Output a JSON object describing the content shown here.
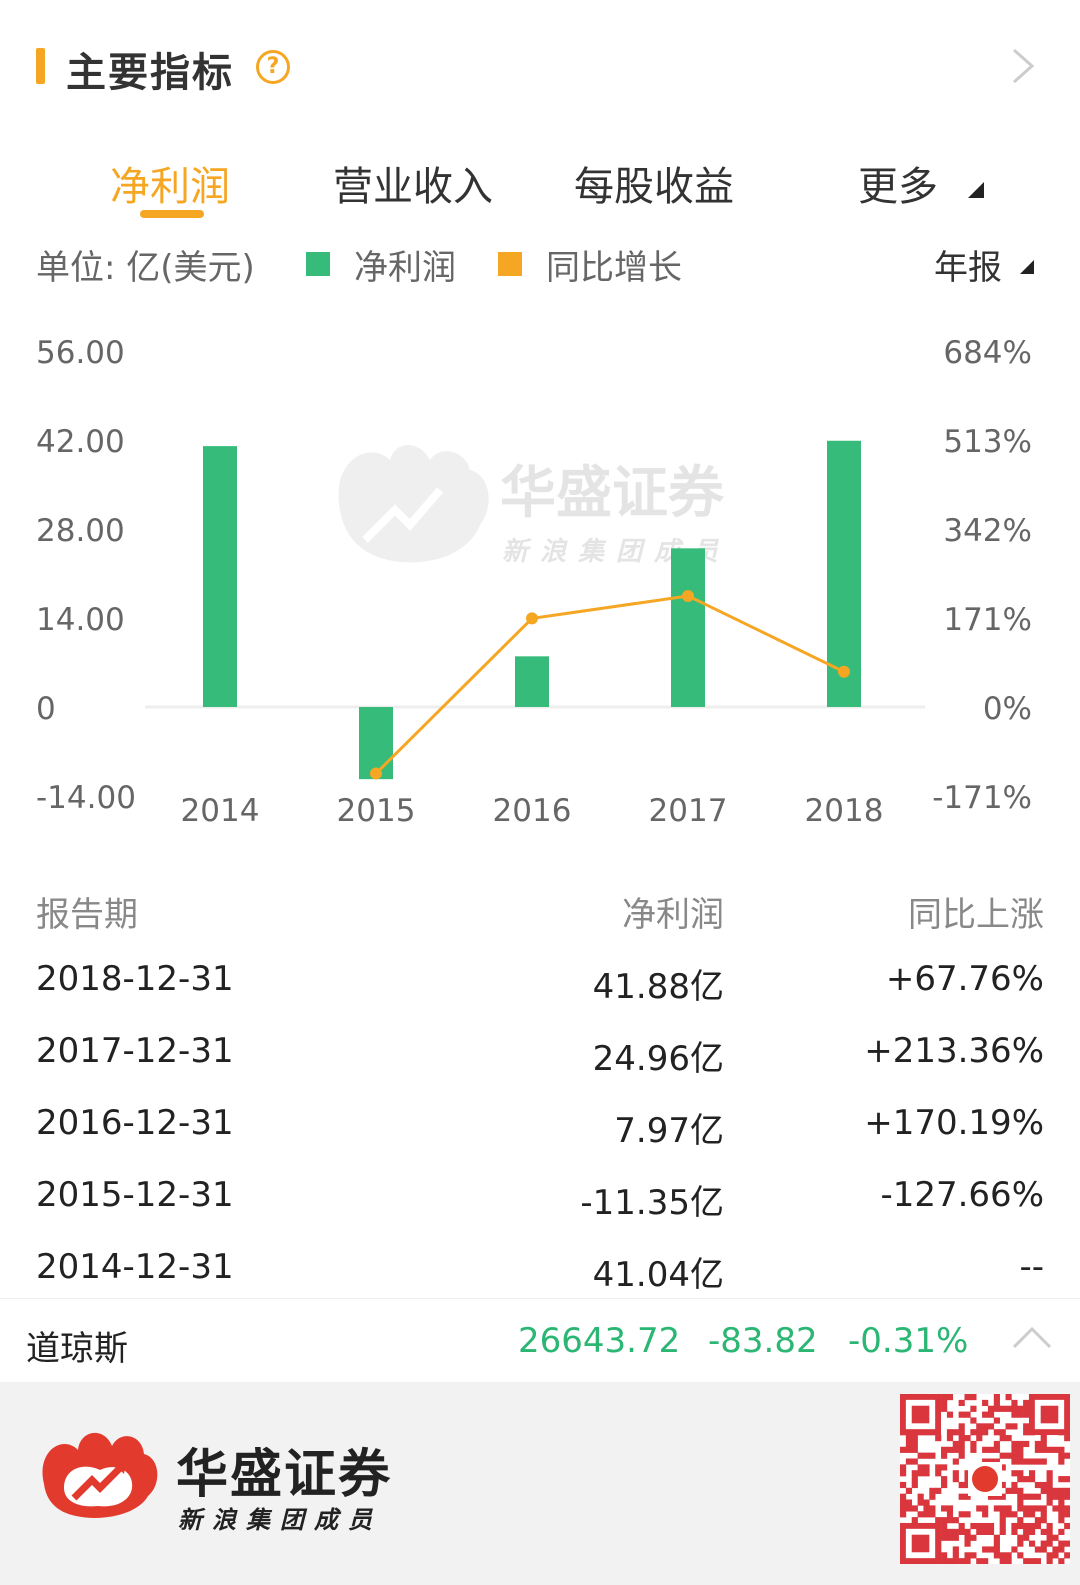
{
  "header": {
    "title": "主要指标",
    "help_glyph": "?"
  },
  "tabs": [
    {
      "label": "净利润",
      "active": true
    },
    {
      "label": "营业收入",
      "active": false
    },
    {
      "label": "每股收益",
      "active": false
    },
    {
      "label": "更多",
      "active": false
    }
  ],
  "legend": {
    "unit": "单位: 亿(美元)",
    "items": [
      {
        "label": "净利润",
        "color": "#36bb7a"
      },
      {
        "label": "同比增长",
        "color": "#f5a623"
      }
    ],
    "period": "年报"
  },
  "watermark": {
    "brand": "华盛证券",
    "sub": "新浪集团成员"
  },
  "chart_data": {
    "type": "bar",
    "categories": [
      "2014",
      "2015",
      "2016",
      "2017",
      "2018"
    ],
    "series": [
      {
        "name": "净利润",
        "type": "bar",
        "axis": "left",
        "color": "#36bb7a",
        "values": [
          41.04,
          -11.35,
          7.97,
          24.96,
          41.88
        ]
      },
      {
        "name": "同比增长",
        "type": "line",
        "axis": "right",
        "color": "#f5a623",
        "values": [
          null,
          -127.66,
          170.19,
          213.36,
          67.76
        ]
      }
    ],
    "ylim": [
      -14,
      56
    ],
    "yticks": [
      "56.00",
      "42.00",
      "28.00",
      "14.00",
      "0",
      "-14.00"
    ],
    "ylim_right": [
      -171,
      684
    ],
    "yticks_right": [
      "684%",
      "513%",
      "342%",
      "171%",
      "0%",
      "-171%"
    ],
    "zero_line": true,
    "legend_position": "top"
  },
  "table": {
    "headers": [
      "报告期",
      "净利润",
      "同比上涨"
    ],
    "rows": [
      {
        "date": "2018-12-31",
        "profit": "41.88亿",
        "change": "+67.76%"
      },
      {
        "date": "2017-12-31",
        "profit": "24.96亿",
        "change": "+213.36%"
      },
      {
        "date": "2016-12-31",
        "profit": "7.97亿",
        "change": "+170.19%"
      },
      {
        "date": "2015-12-31",
        "profit": "-11.35亿",
        "change": "-127.66%"
      },
      {
        "date": "2014-12-31",
        "profit": "41.04亿",
        "change": "--"
      }
    ]
  },
  "ticker": {
    "name": "道琼斯",
    "price": "26643.72",
    "change": "-83.82",
    "percent": "-0.31%",
    "color": "#2bb673"
  },
  "banner": {
    "brand": "华盛证券",
    "sub": "新浪集团成员"
  }
}
